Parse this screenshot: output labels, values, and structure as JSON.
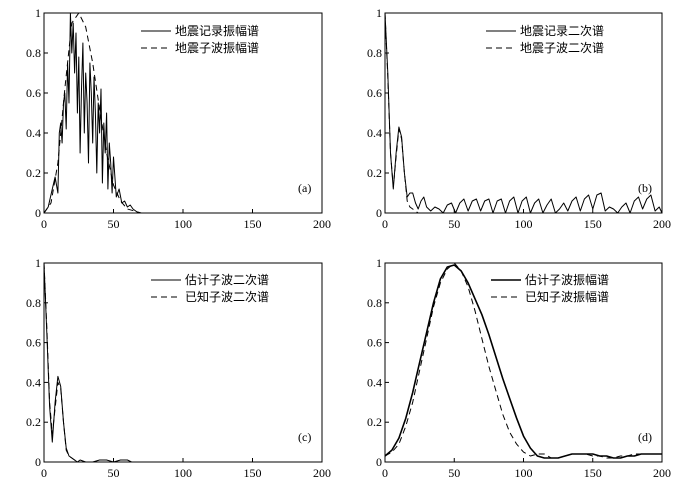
{
  "chart_data": [
    {
      "type": "line",
      "panel_label": "(a)",
      "xlim": [
        0,
        200
      ],
      "ylim": [
        0,
        1
      ],
      "xticks": [
        0,
        50,
        100,
        150,
        200
      ],
      "yticks": [
        0,
        0.2,
        0.4,
        0.6,
        0.8,
        1
      ],
      "ytick_labels": [
        "0",
        "0.2",
        "0.4",
        "0.6",
        "0.8",
        "1"
      ],
      "xtick_labels": [
        "0",
        "50",
        "100",
        "150",
        "200"
      ],
      "legend_position": "top-right",
      "series": [
        {
          "name": "地震记录振幅谱",
          "style": "solid",
          "x": [
            0,
            3,
            6,
            8,
            10,
            11,
            12,
            13,
            14,
            15,
            16,
            17,
            18,
            19,
            20,
            21,
            22,
            23,
            24,
            25,
            26,
            27,
            28,
            29,
            30,
            31,
            32,
            33,
            34,
            35,
            36,
            37,
            38,
            39,
            40,
            41,
            42,
            43,
            44,
            45,
            46,
            47,
            48,
            49,
            50,
            52,
            54,
            56,
            58,
            60,
            62,
            64,
            66,
            68
          ],
          "y": [
            0,
            0.03,
            0.12,
            0.18,
            0.1,
            0.4,
            0.45,
            0.35,
            0.55,
            0.6,
            0.42,
            0.75,
            0.55,
            1.0,
            0.8,
            0.95,
            0.7,
            0.9,
            0.5,
            0.78,
            0.3,
            0.62,
            0.85,
            0.4,
            0.7,
            0.55,
            0.25,
            0.75,
            0.6,
            0.35,
            0.68,
            0.5,
            0.2,
            0.55,
            0.4,
            0.62,
            0.15,
            0.45,
            0.3,
            0.5,
            0.12,
            0.35,
            0.25,
            0.1,
            0.28,
            0.08,
            0.12,
            0.05,
            0.06,
            0.03,
            0.04,
            0.02,
            0.01,
            0.0
          ]
        },
        {
          "name": "地震子波振幅谱",
          "style": "dashed",
          "x": [
            0,
            5,
            10,
            15,
            20,
            25,
            30,
            35,
            40,
            45,
            50,
            55,
            60,
            65,
            70
          ],
          "y": [
            0,
            0.05,
            0.25,
            0.62,
            0.95,
            1.0,
            0.93,
            0.75,
            0.52,
            0.3,
            0.14,
            0.06,
            0.02,
            0.01,
            0.0
          ]
        }
      ]
    },
    {
      "type": "line",
      "panel_label": "(b)",
      "xlim": [
        0,
        200
      ],
      "ylim": [
        0,
        1
      ],
      "xticks": [
        0,
        50,
        100,
        150,
        200
      ],
      "yticks": [
        0,
        0.2,
        0.4,
        0.6,
        0.8,
        1
      ],
      "ytick_labels": [
        "0",
        "0.2",
        "0.4",
        "0.6",
        "0.8",
        "1"
      ],
      "xtick_labels": [
        "0",
        "50",
        "100",
        "150",
        "200"
      ],
      "legend_position": "top-right",
      "series": [
        {
          "name": "地震记录二次谱",
          "style": "solid",
          "x": [
            0,
            2,
            4,
            6,
            8,
            10,
            12,
            14,
            16,
            18,
            20,
            22,
            24,
            26,
            28,
            30,
            33,
            36,
            39,
            42,
            45,
            48,
            51,
            54,
            57,
            60,
            63,
            66,
            69,
            72,
            75,
            78,
            81,
            84,
            87,
            90,
            93,
            96,
            99,
            102,
            105,
            108,
            111,
            114,
            117,
            120,
            123,
            126,
            129,
            132,
            135,
            138,
            141,
            144,
            147,
            150,
            153,
            156,
            159,
            162,
            165,
            168,
            171,
            174,
            177,
            180,
            183,
            186,
            189,
            192,
            195,
            198,
            200
          ],
          "y": [
            1.0,
            0.7,
            0.3,
            0.12,
            0.3,
            0.43,
            0.38,
            0.2,
            0.08,
            0.1,
            0.1,
            0.05,
            0.02,
            0.06,
            0.08,
            0.03,
            0.01,
            0.03,
            0.02,
            0.0,
            0.04,
            0.05,
            0.0,
            0.05,
            0.07,
            0.01,
            0.06,
            0.07,
            0.01,
            0.06,
            0.07,
            0.0,
            0.06,
            0.07,
            0.0,
            0.06,
            0.08,
            0.0,
            0.06,
            0.08,
            0.0,
            0.05,
            0.07,
            0.0,
            0.04,
            0.07,
            0.0,
            0.02,
            0.05,
            0.01,
            0.06,
            0.08,
            0.01,
            0.07,
            0.09,
            0.02,
            0.09,
            0.1,
            0.01,
            0.03,
            0.02,
            0.0,
            0.03,
            0.05,
            0.0,
            0.06,
            0.08,
            0.02,
            0.07,
            0.09,
            0.01,
            0.03,
            0.0
          ]
        },
        {
          "name": "地震子波二次谱",
          "style": "dashed",
          "x": [
            0,
            2,
            4,
            6,
            8,
            10,
            12,
            14,
            16,
            18,
            20,
            22,
            24,
            26,
            30
          ],
          "y": [
            1.0,
            0.68,
            0.3,
            0.13,
            0.28,
            0.42,
            0.37,
            0.2,
            0.06,
            0.03,
            0.02,
            0.01,
            0.0,
            0.0,
            0.0
          ]
        }
      ]
    },
    {
      "type": "line",
      "panel_label": "(c)",
      "xlim": [
        0,
        200
      ],
      "ylim": [
        0,
        1
      ],
      "xticks": [
        0,
        50,
        100,
        150,
        200
      ],
      "yticks": [
        0,
        0.2,
        0.4,
        0.6,
        0.8,
        1
      ],
      "ytick_labels": [
        "0",
        "0.2",
        "0.4",
        "0.6",
        "0.8",
        "1"
      ],
      "xtick_labels": [
        "0",
        "50",
        "100",
        "150",
        "200"
      ],
      "legend_position": "top-right",
      "series": [
        {
          "name": "估计子波二次谱",
          "style": "solid",
          "x": [
            0,
            2,
            4,
            6,
            8,
            10,
            12,
            14,
            16,
            18,
            20,
            22,
            24,
            26,
            30,
            35,
            40,
            45,
            50,
            55,
            60,
            63
          ],
          "y": [
            1.0,
            0.65,
            0.28,
            0.1,
            0.3,
            0.43,
            0.38,
            0.2,
            0.07,
            0.03,
            0.02,
            0.01,
            0.0,
            0.01,
            0.0,
            0.0,
            0.01,
            0.01,
            0.0,
            0.01,
            0.01,
            0.0
          ]
        },
        {
          "name": "已知子波二次谱",
          "style": "dashed",
          "x": [
            0,
            2,
            4,
            6,
            8,
            10,
            12,
            14,
            16,
            18,
            20,
            22,
            24,
            26,
            30
          ],
          "y": [
            1.0,
            0.68,
            0.3,
            0.14,
            0.27,
            0.4,
            0.37,
            0.2,
            0.06,
            0.03,
            0.02,
            0.01,
            0.0,
            0.0,
            0.0
          ]
        }
      ]
    },
    {
      "type": "line",
      "panel_label": "(d)",
      "xlim": [
        0,
        200
      ],
      "ylim": [
        0,
        1
      ],
      "xticks": [
        0,
        50,
        100,
        150,
        200
      ],
      "yticks": [
        0,
        0.2,
        0.4,
        0.6,
        0.8,
        1
      ],
      "ytick_labels": [
        "0",
        "0.2",
        "0.4",
        "0.6",
        "0.8",
        "1"
      ],
      "xtick_labels": [
        "0",
        "50",
        "100",
        "150",
        "200"
      ],
      "legend_position": "top-right",
      "series": [
        {
          "name": "估计子波振幅谱",
          "style": "solid",
          "x": [
            0,
            5,
            10,
            15,
            20,
            25,
            30,
            35,
            40,
            45,
            50,
            55,
            60,
            65,
            70,
            75,
            80,
            85,
            90,
            95,
            100,
            105,
            110,
            115,
            120,
            125,
            130,
            135,
            140,
            145,
            150,
            155,
            160,
            165,
            170,
            175,
            180,
            185,
            190,
            195,
            200
          ],
          "y": [
            0.03,
            0.06,
            0.12,
            0.22,
            0.35,
            0.5,
            0.65,
            0.8,
            0.92,
            0.98,
            0.99,
            0.96,
            0.9,
            0.82,
            0.74,
            0.64,
            0.53,
            0.42,
            0.32,
            0.22,
            0.13,
            0.07,
            0.03,
            0.02,
            0.02,
            0.02,
            0.03,
            0.04,
            0.04,
            0.04,
            0.04,
            0.03,
            0.03,
            0.02,
            0.02,
            0.03,
            0.03,
            0.04,
            0.04,
            0.04,
            0.04
          ]
        },
        {
          "name": "已知子波振幅谱",
          "style": "dashed",
          "x": [
            0,
            5,
            10,
            15,
            20,
            25,
            30,
            35,
            40,
            45,
            50,
            55,
            60,
            65,
            70,
            75,
            80,
            85,
            90,
            95,
            100,
            105,
            110,
            115,
            120,
            125,
            130,
            135,
            140,
            145,
            150,
            155,
            160,
            165,
            170,
            175,
            180,
            185,
            190,
            195,
            200
          ],
          "y": [
            0.03,
            0.05,
            0.09,
            0.18,
            0.3,
            0.46,
            0.62,
            0.78,
            0.9,
            0.97,
            1.0,
            0.96,
            0.88,
            0.76,
            0.62,
            0.48,
            0.36,
            0.24,
            0.15,
            0.09,
            0.05,
            0.03,
            0.04,
            0.04,
            0.02,
            0.02,
            0.03,
            0.04,
            0.04,
            0.04,
            0.03,
            0.03,
            0.02,
            0.02,
            0.03,
            0.03,
            0.04,
            0.04,
            0.04,
            0.04,
            0.04
          ]
        }
      ]
    }
  ]
}
